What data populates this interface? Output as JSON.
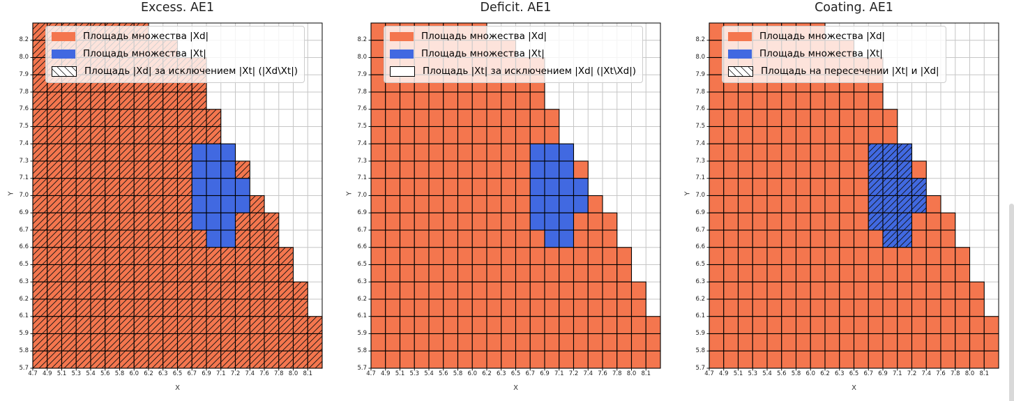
{
  "figure": {
    "background": "#ffffff"
  },
  "scrollbar": {
    "present": true,
    "color": "#d9d9d9"
  },
  "chart_data": {
    "type": "heatmap",
    "description": "Three identical 20x20 cell staircase set-area grids differing only in hatching; orange = set |Xd|, blue = set |Xt| (inside |Xd|).",
    "shared": {
      "xlabel": "X",
      "ylabel": "Y",
      "grid_cols": 20,
      "grid_rows": 20,
      "grid_on": true,
      "x_tick_labels": [
        "4.7",
        "4.9",
        "5.1",
        "5.3",
        "5.4",
        "5.6",
        "5.8",
        "6.0",
        "6.2",
        "6.3",
        "6.5",
        "6.7",
        "6.9",
        "7.1",
        "7.2",
        "7.4",
        "7.6",
        "7.8",
        "8.0",
        "8.1"
      ],
      "y_tick_labels_bottom_up": [
        "5.7",
        "5.8",
        "5.9",
        "6.1",
        "6.2",
        "6.3",
        "6.5",
        "6.6",
        "6.7",
        "6.9",
        "7.0",
        "7.1",
        "7.3",
        "7.4",
        "7.5",
        "7.6",
        "7.8",
        "7.9",
        "8.0",
        "8.2"
      ],
      "xd_row_widths_top_down": [
        8,
        10,
        12,
        12,
        12,
        13,
        13,
        14,
        15,
        15,
        16,
        17,
        17,
        18,
        18,
        19,
        19,
        20,
        20,
        20
      ],
      "xt_cells_top_down": [
        {
          "row": 7,
          "from": 11,
          "to": 13
        },
        {
          "row": 8,
          "from": 11,
          "to": 13
        },
        {
          "row": 9,
          "from": 11,
          "to": 14
        },
        {
          "row": 10,
          "from": 11,
          "to": 14
        },
        {
          "row": 11,
          "from": 11,
          "to": 13
        },
        {
          "row": 12,
          "from": 12,
          "to": 13
        }
      ],
      "colors": {
        "xd_fill": "#f4764e",
        "xt_fill": "#4169e1",
        "cell_edge": "#000000",
        "grid_line": "#c6c6c6",
        "hatch_line": "#111111",
        "legend_border": "#cccccc"
      }
    },
    "plots": [
      {
        "title": "Excess. AE1",
        "hatch_on": "xd",
        "legend": [
          {
            "swatch": "xd",
            "label": "Площадь множества |Xd|"
          },
          {
            "swatch": "xt",
            "label": "Площадь множества  |Xt|"
          },
          {
            "swatch": "hatch",
            "label": "Площадь |Xd| за исключением |Xt| (|Xd\\Xt|)"
          }
        ]
      },
      {
        "title": "Deficit. AE1",
        "hatch_on": "none",
        "legend": [
          {
            "swatch": "xd",
            "label": "Площадь множества |Xd|"
          },
          {
            "swatch": "xt",
            "label": "Площадь множества  |Xt|"
          },
          {
            "swatch": "empty",
            "label": "Площадь |Xt| за исключением |Xd| (|Xt\\Xd|)"
          }
        ]
      },
      {
        "title": "Coating. AE1",
        "hatch_on": "xt",
        "legend": [
          {
            "swatch": "xd",
            "label": "Площадь множества |Xd|"
          },
          {
            "swatch": "xt",
            "label": "Площадь множества  |Xt|"
          },
          {
            "swatch": "hatch",
            "label": "Площадь на пересечении |Xt| и |Xd|"
          }
        ]
      }
    ]
  }
}
